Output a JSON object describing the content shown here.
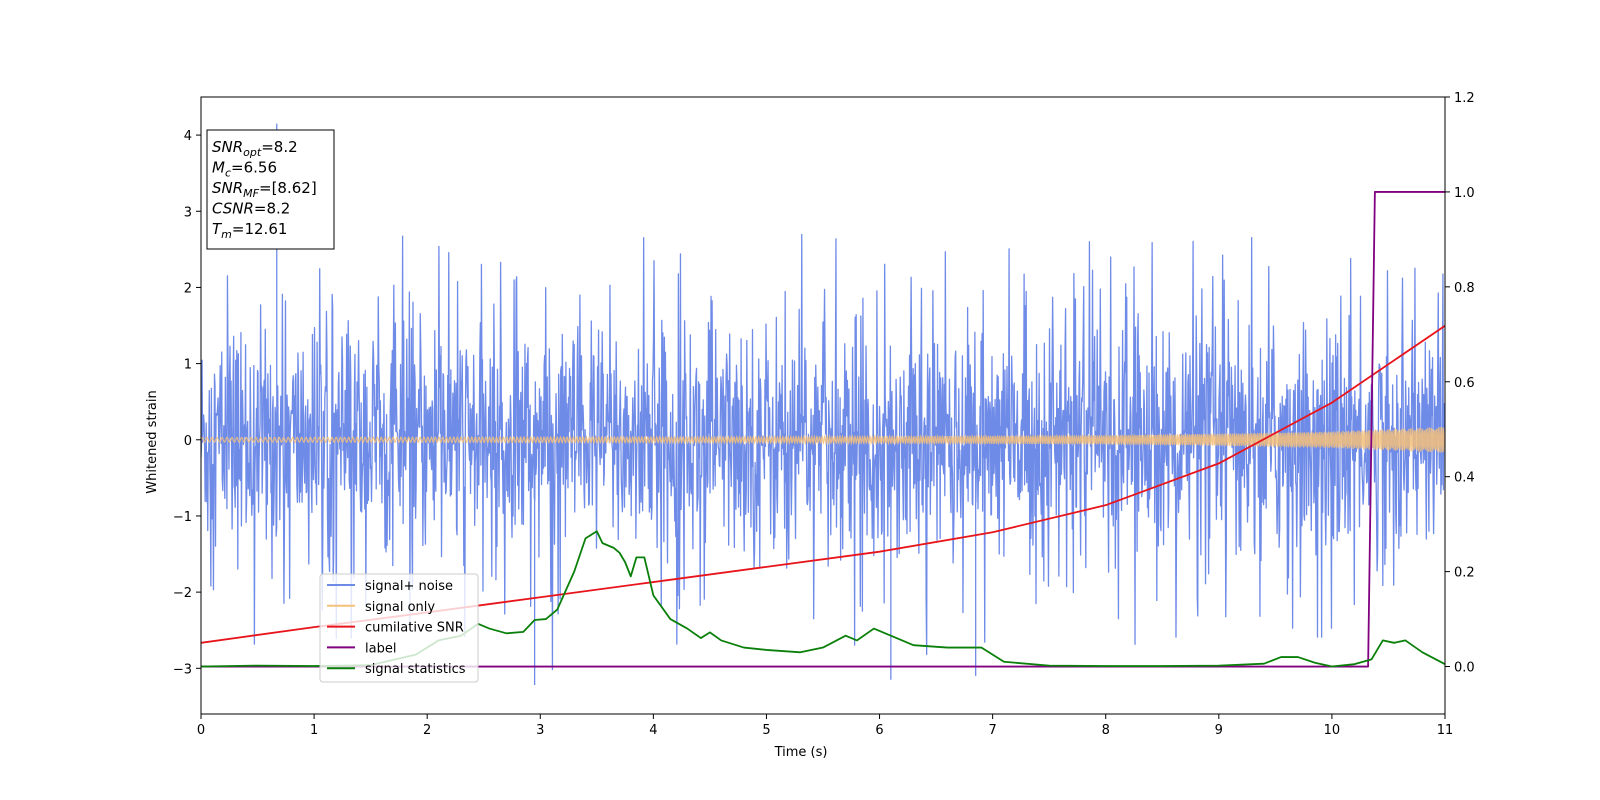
{
  "chart_data": {
    "type": "line",
    "xlabel": "Time (s)",
    "ylabel": "Whitened strain",
    "xlim": [
      0,
      11
    ],
    "ylim": [
      -3.6,
      4.5
    ],
    "y2lim": [
      -0.1,
      1.2
    ],
    "x_ticks": [
      "0",
      "1",
      "2",
      "3",
      "4",
      "5",
      "6",
      "7",
      "8",
      "9",
      "10",
      "11"
    ],
    "y_ticks": [
      "−3",
      "−2",
      "−1",
      "0",
      "1",
      "2",
      "3",
      "4"
    ],
    "y2_ticks": [
      "0.0",
      "0.2",
      "0.4",
      "0.6",
      "0.8",
      "1.0",
      "1.2"
    ],
    "legend_position": "lower-left",
    "info_box": [
      {
        "base": "SNR",
        "sub": "opt",
        "value": "=8.2"
      },
      {
        "base": "M",
        "sub": "c",
        "value": "=6.56"
      },
      {
        "base": "SNR",
        "sub": "MF",
        "value": "=[8.62]"
      },
      {
        "base": "CSNR",
        "sub": "",
        "value": "=8.2"
      },
      {
        "base": "T",
        "sub": "m",
        "value": "=12.61"
      }
    ],
    "series": [
      {
        "name": "signal+ noise",
        "axis": "left",
        "color": "#6f8be8",
        "kind": "noise",
        "noise_sigma": 0.75,
        "typical_extremes": [
          -2.4,
          2.6
        ],
        "notable_peaks": [
          [
            0.67,
            4.15
          ],
          [
            2.95,
            -3.22
          ],
          [
            6.1,
            -3.15
          ],
          [
            6.85,
            -3.1
          ]
        ]
      },
      {
        "name": "signal only",
        "axis": "left",
        "color": "#f5c07a",
        "kind": "chirp",
        "amplitude_envelope": [
          [
            0,
            0.03
          ],
          [
            5,
            0.04
          ],
          [
            8,
            0.06
          ],
          [
            9,
            0.08
          ],
          [
            10,
            0.11
          ],
          [
            11,
            0.17
          ]
        ]
      },
      {
        "name": "cumilative SNR",
        "axis": "right",
        "color": "#e8141b",
        "points": [
          [
            0,
            0.05
          ],
          [
            1,
            0.083
          ],
          [
            2,
            0.114
          ],
          [
            3,
            0.146
          ],
          [
            4,
            0.178
          ],
          [
            5,
            0.21
          ],
          [
            6,
            0.242
          ],
          [
            7,
            0.283
          ],
          [
            8,
            0.34
          ],
          [
            9,
            0.428
          ],
          [
            10,
            0.556
          ],
          [
            11,
            0.718
          ]
        ]
      },
      {
        "name": "label",
        "axis": "right",
        "color": "#800080",
        "points": [
          [
            0,
            0
          ],
          [
            10.32,
            0
          ],
          [
            10.38,
            1
          ],
          [
            11,
            1
          ]
        ]
      },
      {
        "name": "signal statistics",
        "axis": "right",
        "color": "#0a800a",
        "points": [
          [
            0,
            0.0
          ],
          [
            0.5,
            0.002
          ],
          [
            1.0,
            0.001
          ],
          [
            1.5,
            0.003
          ],
          [
            1.9,
            0.025
          ],
          [
            2.1,
            0.055
          ],
          [
            2.3,
            0.065
          ],
          [
            2.45,
            0.09
          ],
          [
            2.55,
            0.08
          ],
          [
            2.7,
            0.07
          ],
          [
            2.85,
            0.073
          ],
          [
            2.95,
            0.098
          ],
          [
            3.05,
            0.1
          ],
          [
            3.15,
            0.12
          ],
          [
            3.3,
            0.2
          ],
          [
            3.4,
            0.27
          ],
          [
            3.5,
            0.285
          ],
          [
            3.55,
            0.26
          ],
          [
            3.65,
            0.25
          ],
          [
            3.7,
            0.24
          ],
          [
            3.75,
            0.22
          ],
          [
            3.8,
            0.19
          ],
          [
            3.85,
            0.23
          ],
          [
            3.92,
            0.23
          ],
          [
            4.0,
            0.15
          ],
          [
            4.15,
            0.1
          ],
          [
            4.3,
            0.08
          ],
          [
            4.42,
            0.06
          ],
          [
            4.5,
            0.072
          ],
          [
            4.6,
            0.055
          ],
          [
            4.8,
            0.04
          ],
          [
            5.0,
            0.035
          ],
          [
            5.3,
            0.03
          ],
          [
            5.5,
            0.04
          ],
          [
            5.7,
            0.065
          ],
          [
            5.8,
            0.055
          ],
          [
            5.95,
            0.08
          ],
          [
            6.1,
            0.065
          ],
          [
            6.3,
            0.045
          ],
          [
            6.6,
            0.04
          ],
          [
            6.9,
            0.04
          ],
          [
            7.1,
            0.01
          ],
          [
            7.5,
            0.002
          ],
          [
            8.0,
            0.001
          ],
          [
            8.5,
            0.001
          ],
          [
            9.0,
            0.002
          ],
          [
            9.4,
            0.006
          ],
          [
            9.55,
            0.02
          ],
          [
            9.7,
            0.02
          ],
          [
            9.85,
            0.008
          ],
          [
            10.0,
            0.0
          ],
          [
            10.2,
            0.005
          ],
          [
            10.35,
            0.015
          ],
          [
            10.45,
            0.055
          ],
          [
            10.55,
            0.05
          ],
          [
            10.65,
            0.055
          ],
          [
            10.8,
            0.03
          ],
          [
            11.0,
            0.005
          ]
        ]
      }
    ]
  }
}
